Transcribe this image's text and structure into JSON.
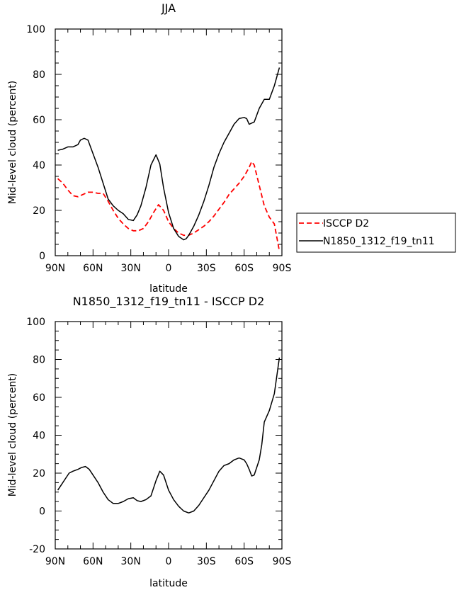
{
  "chart_data": [
    {
      "type": "line",
      "title": "JJA",
      "xlabel": "latitude",
      "ylabel": "Mid-level cloud (percent)",
      "xlim": [
        -90,
        90
      ],
      "ylim": [
        0,
        100
      ],
      "xticks": [
        -90,
        -60,
        -30,
        0,
        30,
        60,
        90
      ],
      "xticklabels": [
        "90N",
        "60N",
        "30N",
        "0",
        "30S",
        "60S",
        "90S"
      ],
      "yticks": [
        0,
        20,
        40,
        60,
        80,
        100
      ],
      "yticklabels": [
        "0",
        "20",
        "40",
        "60",
        "80",
        "100"
      ],
      "legend_position": "outside-right",
      "series": [
        {
          "name": "ISCCP D2",
          "color": "#ff0000",
          "style": "dashed",
          "x": [
            -88,
            -84,
            -80,
            -76,
            -72,
            -68,
            -64,
            -60,
            -56,
            -52,
            -48,
            -44,
            -40,
            -36,
            -32,
            -28,
            -24,
            -20,
            -16,
            -12,
            -8,
            -4,
            0,
            4,
            8,
            12,
            16,
            20,
            24,
            28,
            32,
            36,
            40,
            44,
            48,
            52,
            56,
            60,
            64,
            66,
            68,
            72,
            76,
            80,
            84,
            88
          ],
          "values": [
            34,
            32,
            29,
            26.5,
            26,
            27,
            28,
            28,
            27.5,
            27.5,
            24,
            20,
            16.5,
            14,
            12,
            11,
            11,
            12,
            15,
            19,
            22.5,
            20,
            15,
            12,
            10,
            9,
            9,
            10,
            11.5,
            13,
            15,
            17.5,
            20.5,
            23.5,
            27,
            29.5,
            32,
            35,
            39,
            41.5,
            40,
            31,
            22,
            17,
            14,
            2
          ]
        },
        {
          "name": "N1850_1312_f19_tn11",
          "color": "#000000",
          "style": "solid",
          "x": [
            -88,
            -84,
            -80,
            -76,
            -72,
            -70,
            -67,
            -64,
            -60,
            -56,
            -52,
            -48,
            -44,
            -40,
            -36,
            -32,
            -28,
            -25,
            -22,
            -18,
            -14,
            -10,
            -7,
            -4,
            0,
            4,
            8,
            12,
            14,
            16,
            20,
            24,
            28,
            32,
            36,
            40,
            44,
            48,
            52,
            56,
            60,
            62,
            64,
            68,
            72,
            76,
            80,
            84,
            88
          ],
          "values": [
            46.5,
            47,
            48,
            48,
            49,
            51,
            51.8,
            51,
            45,
            39,
            32,
            25,
            22,
            20,
            18.5,
            16,
            15.5,
            18,
            22,
            30,
            40,
            44.5,
            40.5,
            30,
            19,
            12,
            8.5,
            7,
            7.5,
            9,
            13,
            18,
            24,
            31,
            39,
            45,
            50,
            54,
            58,
            60.5,
            61,
            60.5,
            58,
            59,
            65,
            69,
            69,
            75,
            83
          ]
        }
      ]
    },
    {
      "type": "line",
      "title": "N1850_1312_f19_tn11 - ISCCP D2",
      "xlabel": "latitude",
      "ylabel": "Mid-level cloud (percent)",
      "xlim": [
        -90,
        90
      ],
      "ylim": [
        -20,
        100
      ],
      "xticks": [
        -90,
        -60,
        -30,
        0,
        30,
        60,
        90
      ],
      "xticklabels": [
        "90N",
        "60N",
        "30N",
        "0",
        "30S",
        "60S",
        "90S"
      ],
      "yticks": [
        -20,
        0,
        20,
        40,
        60,
        80,
        100
      ],
      "yticklabels": [
        "-20",
        "0",
        "20",
        "40",
        "60",
        "80",
        "100"
      ],
      "series": [
        {
          "name": "",
          "color": "#000000",
          "style": "solid",
          "x": [
            -88,
            -85,
            -82,
            -79,
            -76,
            -72,
            -69,
            -66,
            -63,
            -60,
            -56,
            -52,
            -48,
            -44,
            -40,
            -36,
            -32,
            -28,
            -25,
            -22,
            -18,
            -14,
            -10,
            -7,
            -4,
            0,
            4,
            8,
            12,
            16,
            20,
            24,
            28,
            32,
            36,
            40,
            44,
            48,
            52,
            56,
            60,
            62,
            64,
            66,
            68,
            72,
            74,
            76,
            80,
            84,
            88
          ],
          "values": [
            11,
            14,
            17,
            20,
            21,
            22,
            23,
            23.5,
            22,
            19,
            15,
            10,
            6,
            4,
            4,
            5,
            6.5,
            7,
            5.5,
            5,
            6,
            8,
            16,
            21,
            19,
            11,
            6,
            2.5,
            0,
            -1,
            0,
            3,
            7,
            11,
            16,
            21,
            24,
            25,
            27,
            28,
            27,
            25,
            22,
            18.5,
            19,
            27,
            35,
            47,
            53,
            62,
            81
          ]
        }
      ]
    }
  ]
}
